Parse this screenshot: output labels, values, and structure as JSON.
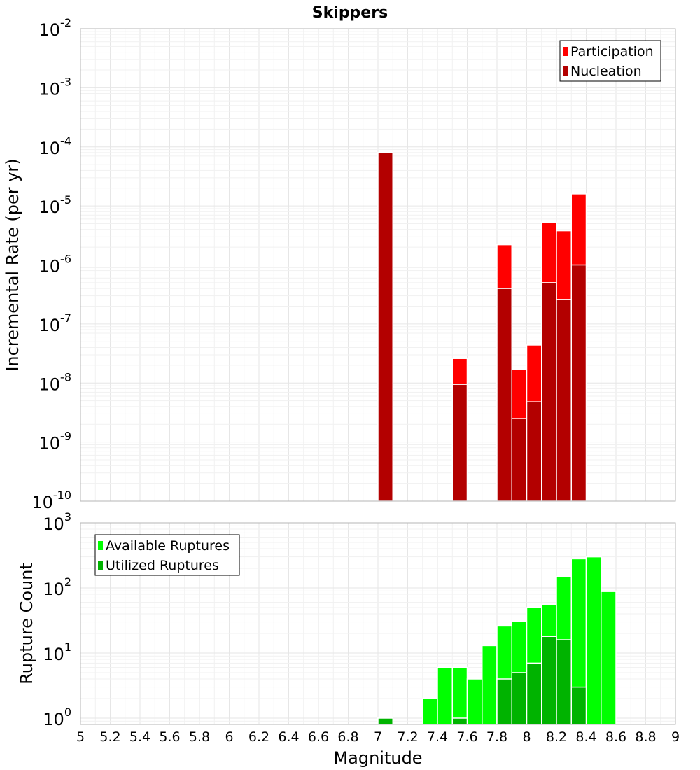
{
  "chart_data": [
    {
      "type": "bar",
      "title": "Skippers",
      "xlabel": "",
      "ylabel": "Incremental Rate (per yr)",
      "yscale": "log",
      "ylim": [
        1e-10,
        0.01
      ],
      "xlim": [
        5,
        9
      ],
      "bin_width": 0.1,
      "y_ticks": [
        {
          "base": "10",
          "exp": "-10",
          "value": 1e-10
        },
        {
          "base": "10",
          "exp": "-9",
          "value": 1e-09
        },
        {
          "base": "10",
          "exp": "-8",
          "value": 1e-08
        },
        {
          "base": "10",
          "exp": "-7",
          "value": 1e-07
        },
        {
          "base": "10",
          "exp": "-6",
          "value": 1e-06
        },
        {
          "base": "10",
          "exp": "-5",
          "value": 1e-05
        },
        {
          "base": "10",
          "exp": "-4",
          "value": 0.0001
        },
        {
          "base": "10",
          "exp": "-3",
          "value": 0.001
        },
        {
          "base": "10",
          "exp": "-2",
          "value": 0.01
        }
      ],
      "legend_position": "top-right",
      "series": [
        {
          "name": "Participation",
          "color": "#ff0000",
          "points": [
            {
              "x": 7.05,
              "y": 8e-05
            },
            {
              "x": 7.55,
              "y": 2.6e-08
            },
            {
              "x": 7.85,
              "y": 2.2e-06
            },
            {
              "x": 7.95,
              "y": 1.7e-08
            },
            {
              "x": 8.05,
              "y": 4.4e-08
            },
            {
              "x": 8.15,
              "y": 5.3e-06
            },
            {
              "x": 8.25,
              "y": 3.8e-06
            },
            {
              "x": 8.35,
              "y": 1.6e-05
            }
          ]
        },
        {
          "name": "Nucleation",
          "color": "#b30000",
          "points": [
            {
              "x": 7.05,
              "y": 8e-05
            },
            {
              "x": 7.55,
              "y": 9.5e-09
            },
            {
              "x": 7.85,
              "y": 4e-07
            },
            {
              "x": 7.95,
              "y": 2.5e-09
            },
            {
              "x": 8.05,
              "y": 4.8e-09
            },
            {
              "x": 8.15,
              "y": 5e-07
            },
            {
              "x": 8.25,
              "y": 2.6e-07
            },
            {
              "x": 8.35,
              "y": 1e-06
            }
          ]
        }
      ]
    },
    {
      "type": "bar",
      "title": "",
      "xlabel": "Magnitude",
      "ylabel": "Rupture Count",
      "yscale": "log",
      "ylim": [
        0.8,
        1000
      ],
      "xlim": [
        5,
        9
      ],
      "bin_width": 0.1,
      "x_tick_labels": [
        "5",
        "5.2",
        "5.4",
        "5.6",
        "5.8",
        "6",
        "6.2",
        "6.4",
        "6.6",
        "6.8",
        "7",
        "7.2",
        "7.4",
        "7.6",
        "7.8",
        "8",
        "8.2",
        "8.4",
        "8.6",
        "8.8",
        "9"
      ],
      "y_ticks": [
        {
          "base": "10",
          "exp": "0",
          "value": 1
        },
        {
          "base": "10",
          "exp": "1",
          "value": 10
        },
        {
          "base": "10",
          "exp": "2",
          "value": 100
        },
        {
          "base": "10",
          "exp": "3",
          "value": 1000
        }
      ],
      "legend_position": "top-left",
      "series": [
        {
          "name": "Available Ruptures",
          "color": "#00ff00",
          "points": [
            {
              "x": 7.05,
              "y": 1
            },
            {
              "x": 7.35,
              "y": 2
            },
            {
              "x": 7.45,
              "y": 6
            },
            {
              "x": 7.55,
              "y": 6
            },
            {
              "x": 7.65,
              "y": 4
            },
            {
              "x": 7.75,
              "y": 13
            },
            {
              "x": 7.85,
              "y": 26
            },
            {
              "x": 7.95,
              "y": 31
            },
            {
              "x": 8.05,
              "y": 50
            },
            {
              "x": 8.15,
              "y": 56
            },
            {
              "x": 8.25,
              "y": 150
            },
            {
              "x": 8.35,
              "y": 280
            },
            {
              "x": 8.45,
              "y": 300
            },
            {
              "x": 8.55,
              "y": 88
            }
          ]
        },
        {
          "name": "Utilized Ruptures",
          "color": "#00b300",
          "points": [
            {
              "x": 7.05,
              "y": 1
            },
            {
              "x": 7.55,
              "y": 1
            },
            {
              "x": 7.85,
              "y": 4
            },
            {
              "x": 7.95,
              "y": 5
            },
            {
              "x": 8.05,
              "y": 7
            },
            {
              "x": 8.15,
              "y": 18
            },
            {
              "x": 8.25,
              "y": 16
            },
            {
              "x": 8.35,
              "y": 3
            }
          ]
        }
      ]
    }
  ]
}
